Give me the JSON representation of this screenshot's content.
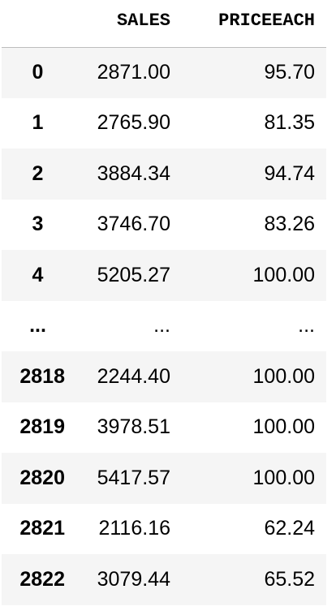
{
  "table": {
    "columns": [
      "SALES",
      "PRICEEACH"
    ],
    "rows": [
      {
        "index": "0",
        "sales": "2871.00",
        "priceeach": "95.70"
      },
      {
        "index": "1",
        "sales": "2765.90",
        "priceeach": "81.35"
      },
      {
        "index": "2",
        "sales": "3884.34",
        "priceeach": "94.74"
      },
      {
        "index": "3",
        "sales": "3746.70",
        "priceeach": "83.26"
      },
      {
        "index": "4",
        "sales": "5205.27",
        "priceeach": "100.00"
      },
      {
        "index": "...",
        "sales": "...",
        "priceeach": "..."
      },
      {
        "index": "2818",
        "sales": "2244.40",
        "priceeach": "100.00"
      },
      {
        "index": "2819",
        "sales": "3978.51",
        "priceeach": "100.00"
      },
      {
        "index": "2820",
        "sales": "5417.57",
        "priceeach": "100.00"
      },
      {
        "index": "2821",
        "sales": "2116.16",
        "priceeach": "62.24"
      },
      {
        "index": "2822",
        "sales": "3079.44",
        "priceeach": "65.52"
      }
    ]
  },
  "colors": {
    "stripe": "#f5f5f5",
    "header_border": "#bdbdbd",
    "text": "#000000"
  }
}
